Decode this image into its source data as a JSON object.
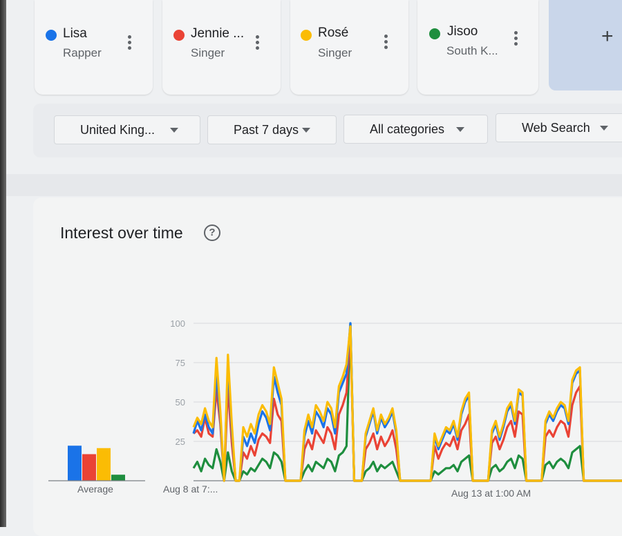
{
  "terms": [
    {
      "name": "Lisa",
      "subtitle": "Rapper",
      "color": "#1a73e8"
    },
    {
      "name": "Jennie ...",
      "subtitle": "Singer",
      "color": "#ea4335"
    },
    {
      "name": "Rosé",
      "subtitle": "Singer",
      "color": "#fbbc04"
    },
    {
      "name": "Jisoo",
      "subtitle": "South K...",
      "color": "#1e8e3e"
    }
  ],
  "add_symbol": "+",
  "filters": {
    "region": "United King...",
    "time": "Past 7 days",
    "category": "All categories",
    "search_type": "Web Search"
  },
  "panel": {
    "title": "Interest over time",
    "help_symbol": "?"
  },
  "average_label": "Average",
  "chart_data": {
    "type": "line",
    "title": "Interest over time",
    "yticks": [
      100,
      75,
      50,
      25
    ],
    "ylim": [
      0,
      100
    ],
    "xtick_labels": [
      "Aug 8 at 7:...",
      "Aug 13 at 1:00 AM"
    ],
    "average": {
      "Lisa": 29,
      "Jennie": 22,
      "Rosé": 27,
      "Jisoo": 5
    },
    "series": [
      {
        "name": "Lisa",
        "color": "#1a73e8",
        "values": [
          30,
          38,
          32,
          42,
          34,
          30,
          68,
          40,
          0,
          75,
          32,
          0,
          0,
          28,
          22,
          30,
          24,
          36,
          44,
          40,
          32,
          66,
          56,
          48,
          0,
          0,
          0,
          0,
          0,
          28,
          38,
          30,
          44,
          40,
          34,
          46,
          42,
          30,
          56,
          62,
          68,
          100,
          0,
          0,
          0,
          28,
          36,
          44,
          30,
          40,
          34,
          38,
          44,
          30,
          0,
          0,
          0,
          0,
          0,
          0,
          0,
          0,
          0,
          28,
          20,
          26,
          32,
          30,
          36,
          26,
          42,
          50,
          54,
          0,
          0,
          0,
          0,
          0,
          30,
          36,
          26,
          34,
          44,
          48,
          36,
          56,
          54,
          0,
          0,
          0,
          0,
          0,
          36,
          42,
          38,
          44,
          48,
          46,
          36,
          62,
          68,
          70,
          0,
          0,
          0,
          0,
          0,
          0,
          0,
          0,
          0,
          0,
          0
        ]
      },
      {
        "name": "Jennie",
        "color": "#ea4335",
        "values": [
          30,
          32,
          28,
          40,
          30,
          28,
          58,
          36,
          0,
          60,
          24,
          0,
          0,
          18,
          14,
          22,
          16,
          26,
          30,
          28,
          24,
          52,
          42,
          38,
          0,
          0,
          0,
          0,
          0,
          20,
          26,
          20,
          32,
          28,
          24,
          34,
          30,
          20,
          42,
          48,
          56,
          95,
          0,
          0,
          0,
          20,
          24,
          30,
          20,
          28,
          22,
          26,
          32,
          20,
          0,
          0,
          0,
          0,
          0,
          0,
          0,
          0,
          0,
          22,
          14,
          20,
          24,
          22,
          28,
          20,
          32,
          36,
          42,
          0,
          0,
          0,
          0,
          0,
          24,
          28,
          20,
          26,
          34,
          38,
          28,
          44,
          42,
          0,
          0,
          0,
          0,
          0,
          28,
          32,
          28,
          34,
          38,
          36,
          28,
          48,
          56,
          60,
          0,
          0,
          0,
          0,
          0,
          0,
          0,
          0,
          0,
          0,
          0
        ]
      },
      {
        "name": "Rosé",
        "color": "#fbbc04",
        "values": [
          34,
          40,
          36,
          46,
          38,
          34,
          78,
          44,
          0,
          80,
          36,
          0,
          0,
          34,
          28,
          36,
          30,
          42,
          48,
          44,
          36,
          72,
          62,
          52,
          0,
          0,
          0,
          0,
          0,
          32,
          42,
          34,
          48,
          44,
          38,
          50,
          46,
          34,
          60,
          66,
          74,
          98,
          0,
          0,
          0,
          30,
          38,
          46,
          32,
          42,
          36,
          40,
          46,
          32,
          0,
          0,
          0,
          0,
          0,
          0,
          0,
          0,
          0,
          30,
          22,
          28,
          34,
          32,
          38,
          28,
          44,
          52,
          56,
          0,
          0,
          0,
          0,
          0,
          32,
          38,
          28,
          36,
          46,
          50,
          38,
          58,
          56,
          0,
          0,
          0,
          0,
          0,
          38,
          44,
          40,
          46,
          50,
          48,
          38,
          64,
          70,
          72,
          0,
          0,
          0,
          0,
          0,
          0,
          0,
          0,
          0,
          0,
          0
        ]
      },
      {
        "name": "Jisoo",
        "color": "#1e8e3e",
        "values": [
          8,
          12,
          6,
          14,
          10,
          8,
          20,
          12,
          0,
          18,
          6,
          0,
          0,
          6,
          4,
          8,
          6,
          10,
          14,
          12,
          8,
          18,
          16,
          12,
          0,
          0,
          0,
          0,
          0,
          6,
          10,
          6,
          12,
          10,
          8,
          14,
          12,
          6,
          16,
          18,
          22,
          100,
          0,
          0,
          0,
          6,
          8,
          12,
          6,
          10,
          8,
          10,
          12,
          6,
          0,
          0,
          0,
          0,
          0,
          0,
          0,
          0,
          0,
          6,
          4,
          6,
          8,
          8,
          10,
          6,
          12,
          14,
          16,
          0,
          0,
          0,
          0,
          0,
          8,
          10,
          6,
          8,
          12,
          14,
          8,
          16,
          14,
          0,
          0,
          0,
          0,
          0,
          10,
          12,
          8,
          12,
          14,
          12,
          8,
          18,
          20,
          22,
          0,
          0,
          0,
          0,
          0,
          0,
          0,
          0,
          0,
          0,
          0
        ]
      }
    ]
  }
}
